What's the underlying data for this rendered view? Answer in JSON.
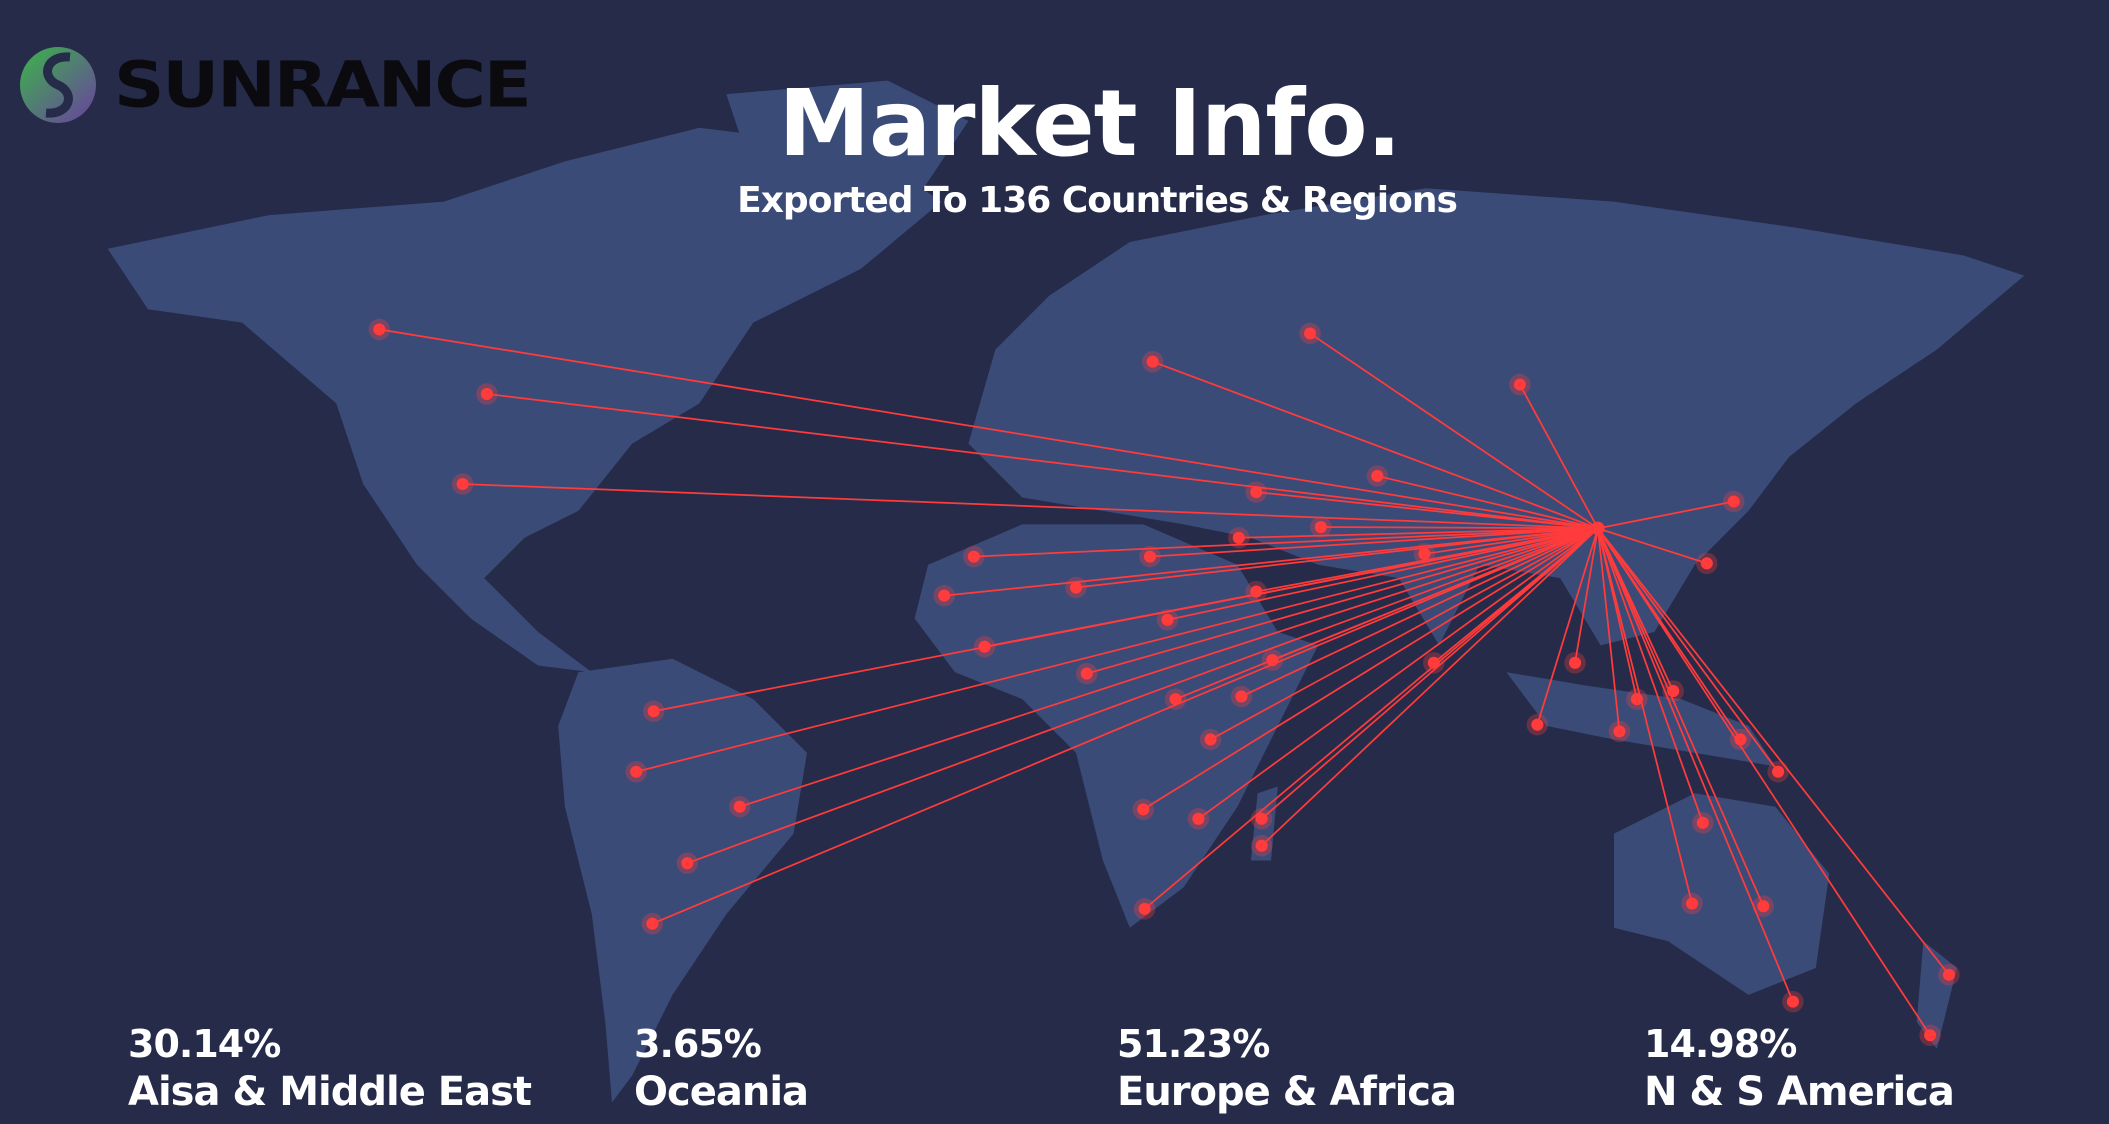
{
  "brand": {
    "logo_text": "SUNRANCE",
    "logo_colors": [
      "#3bb54a",
      "#6b3fa0"
    ]
  },
  "header": {
    "title": "Market Info.",
    "subtitle": "Exported To 136 Countries & Regions"
  },
  "colors": {
    "background": "#252b49",
    "land": "#3a4b78",
    "route": "#ff3b3b"
  },
  "stats": [
    {
      "percent": "30.14%",
      "label": "Aisa & Middle East"
    },
    {
      "percent": "3.65%",
      "label": "Oceania"
    },
    {
      "percent": "51.23%",
      "label": "Europe & Africa"
    },
    {
      "percent": "14.98%",
      "label": "N & S America"
    }
  ]
}
